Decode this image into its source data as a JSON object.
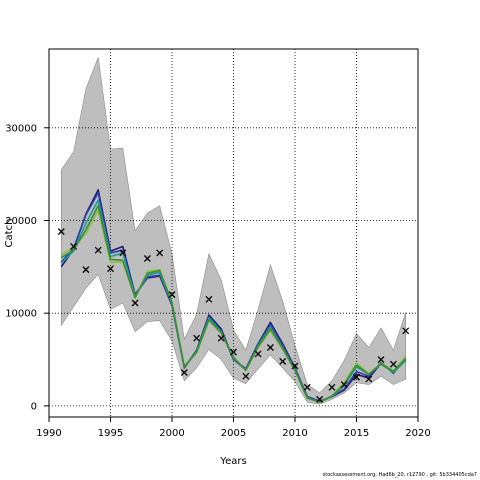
{
  "chart_data": {
    "type": "line",
    "xlabel": "Years",
    "ylabel": "Catch",
    "xlim": [
      1990,
      2020
    ],
    "ylim": [
      -1200,
      38500
    ],
    "xticks": [
      1990,
      1995,
      2000,
      2005,
      2010,
      2015,
      2020
    ],
    "yticks": [
      0,
      10000,
      20000,
      30000
    ],
    "grid": "dotted",
    "x": [
      1991,
      1992,
      1993,
      1994,
      1995,
      1996,
      1997,
      1998,
      1999,
      2000,
      2001,
      2002,
      2003,
      2004,
      2005,
      2006,
      2007,
      2008,
      2009,
      2010,
      2011,
      2012,
      2013,
      2014,
      2015,
      2016,
      2017,
      2018,
      2019
    ],
    "band": {
      "upper": [
        25500,
        27400,
        34200,
        37600,
        27700,
        27800,
        18900,
        20800,
        21600,
        16400,
        7200,
        9900,
        16400,
        13600,
        8200,
        6000,
        10400,
        15200,
        11300,
        6500,
        2300,
        1400,
        2700,
        4900,
        7800,
        6300,
        8400,
        6000,
        10100
      ],
      "lower": [
        8700,
        10700,
        12700,
        14200,
        10400,
        11100,
        8000,
        9100,
        9200,
        7000,
        2700,
        4100,
        6100,
        5000,
        3000,
        2400,
        4000,
        5500,
        4100,
        2600,
        400,
        200,
        700,
        1400,
        2500,
        2300,
        3200,
        2300,
        2900
      ]
    },
    "series": [
      {
        "values": [
          15000,
          16900,
          20700,
          23300,
          16700,
          17200,
          12000,
          13800,
          14000,
          10900,
          4100,
          6000,
          9800,
          8300,
          5000,
          4000,
          6700,
          9000,
          6700,
          4100,
          1000,
          500,
          1000,
          1700,
          3400,
          3000,
          4600,
          3600,
          5000
        ]
      },
      {
        "values": [
          15500,
          17000,
          20600,
          23000,
          16500,
          16800,
          11900,
          13900,
          14100,
          10800,
          4200,
          5900,
          9600,
          8100,
          5000,
          3900,
          6600,
          8800,
          6500,
          4000,
          1000,
          500,
          1000,
          1800,
          3700,
          3200,
          4700,
          3500,
          5200
        ]
      },
      {
        "values": [
          15400,
          16700,
          19700,
          22200,
          16100,
          16500,
          11800,
          14100,
          14400,
          11000,
          4200,
          5900,
          9500,
          8000,
          5100,
          3900,
          6500,
          8500,
          6300,
          3900,
          900,
          400,
          1000,
          2200,
          4200,
          3400,
          4500,
          3600,
          4900
        ]
      },
      {
        "values": [
          16300,
          17100,
          18600,
          21100,
          15500,
          15500,
          11600,
          14500,
          14700,
          11200,
          4300,
          5700,
          9200,
          7800,
          5300,
          3800,
          6300,
          8100,
          6100,
          3800,
          800,
          400,
          1100,
          2500,
          4600,
          3500,
          4600,
          3800,
          5300
        ]
      },
      {
        "values": [
          16000,
          16800,
          19000,
          21600,
          15800,
          15700,
          11700,
          14300,
          14600,
          11100,
          4200,
          5800,
          9300,
          7900,
          5200,
          3850,
          6400,
          8300,
          6200,
          3850,
          850,
          420,
          1050,
          2300,
          4400,
          3400,
          4550,
          3700,
          5100
        ]
      }
    ],
    "colors": {
      "band": "#bebebe",
      "band_edge": "#8c8c8c",
      "series": [
        "#2a1a6e",
        "#2b3fa6",
        "#1f9a9a",
        "#8cc03a",
        "#3c8c3c"
      ],
      "points": "#000000"
    },
    "observed": {
      "x": [
        1991,
        1992,
        1993,
        1994,
        1995,
        1996,
        1997,
        1998,
        1999,
        2000,
        2001,
        2002,
        2003,
        2004,
        2005,
        2006,
        2007,
        2008,
        2009,
        2010,
        2011,
        2012,
        2013,
        2014,
        2015,
        2016,
        2017,
        2018,
        2019
      ],
      "y": [
        18800,
        17200,
        14700,
        16800,
        14800,
        16500,
        11100,
        15900,
        16500,
        12000,
        3600,
        7300,
        11500,
        7300,
        5800,
        3200,
        5600,
        6300,
        4800,
        4300,
        2000,
        700,
        2000,
        2300,
        3100,
        2900,
        5000,
        4500,
        8100
      ]
    }
  },
  "footer": {
    "text": "stockassessment.org, Had6b_20, r12790 , git: 5b334405cda7"
  }
}
